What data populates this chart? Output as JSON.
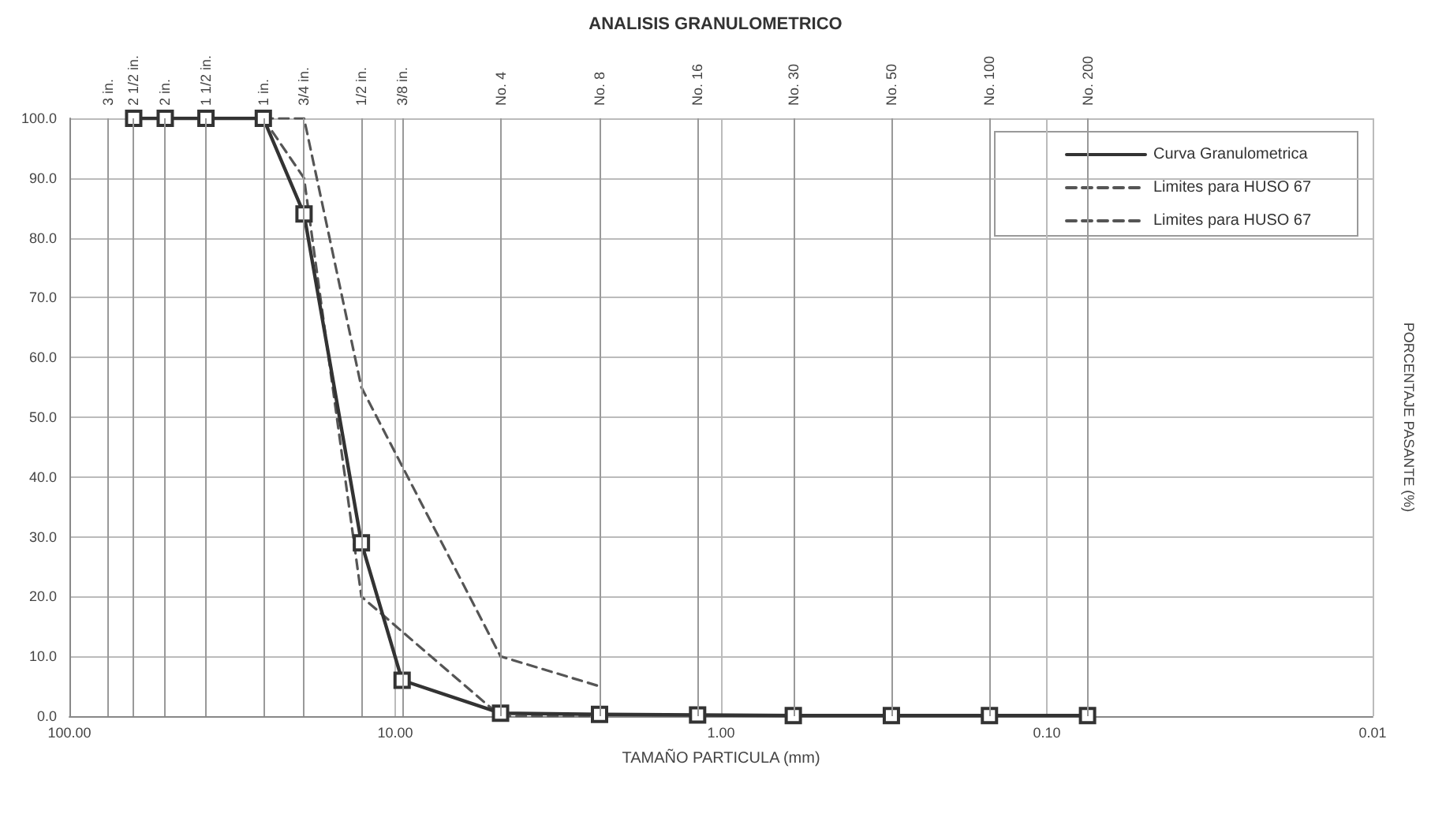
{
  "chart_data": {
    "type": "line",
    "title": "ANALISIS GRANULOMETRICO",
    "xlabel": "TAMAÑO PARTICULA (mm)",
    "ylabel": "PORCENTAJE PASANTE (%)",
    "log": "x",
    "xlim": [
      100,
      0.01
    ],
    "ylim": [
      0,
      100
    ],
    "xticks": [
      {
        "value": 100,
        "label": "100.00"
      },
      {
        "value": 10,
        "label": "10.00"
      },
      {
        "value": 1,
        "label": "1.00"
      },
      {
        "value": 0.1,
        "label": "0.10"
      },
      {
        "value": 0.01,
        "label": "0.01"
      }
    ],
    "yticks": [
      {
        "value": 0,
        "label": "0.0"
      },
      {
        "value": 10,
        "label": "10.0"
      },
      {
        "value": 20,
        "label": "20.0"
      },
      {
        "value": 30,
        "label": "30.0"
      },
      {
        "value": 40,
        "label": "40.0"
      },
      {
        "value": 50,
        "label": "50.0"
      },
      {
        "value": 60,
        "label": "60.0"
      },
      {
        "value": 70,
        "label": "70.0"
      },
      {
        "value": 80,
        "label": "80.0"
      },
      {
        "value": 90,
        "label": "90.0"
      },
      {
        "value": 100,
        "label": "100.0"
      }
    ],
    "ref_lines": [
      {
        "axis": "x",
        "value": 76.2,
        "label": "3 in.",
        "color": "#999999"
      },
      {
        "axis": "x",
        "value": 63.5,
        "label": "2 1/2 in.",
        "color": "#999999"
      },
      {
        "axis": "x",
        "value": 50.8,
        "label": "2 in.",
        "color": "#999999"
      },
      {
        "axis": "x",
        "value": 38.1,
        "label": "1 1/2 in.",
        "color": "#999999"
      },
      {
        "axis": "x",
        "value": 25.4,
        "label": "1 in.",
        "color": "#999999"
      },
      {
        "axis": "x",
        "value": 19.05,
        "label": "3/4 in.",
        "color": "#999999"
      },
      {
        "axis": "x",
        "value": 12.7,
        "label": "1/2 in.",
        "color": "#999999"
      },
      {
        "axis": "x",
        "value": 9.525,
        "label": "3/8 in.",
        "color": "#999999"
      },
      {
        "axis": "x",
        "value": 4.75,
        "label": "No. 4",
        "color": "#999999"
      },
      {
        "axis": "x",
        "value": 2.36,
        "label": "No. 8",
        "color": "#999999"
      },
      {
        "axis": "x",
        "value": 1.18,
        "label": "No. 16",
        "color": "#999999"
      },
      {
        "axis": "x",
        "value": 0.6,
        "label": "No. 30",
        "color": "#999999"
      },
      {
        "axis": "x",
        "value": 0.3,
        "label": "No. 50",
        "color": "#999999"
      },
      {
        "axis": "x",
        "value": 0.15,
        "label": "No. 100",
        "color": "#999999"
      },
      {
        "axis": "x",
        "value": 0.075,
        "label": "No. 200",
        "color": "#999999"
      }
    ],
    "grid": true,
    "legend": "top right",
    "series": [
      {
        "name": "Curva Granulometrica",
        "color": "#333333",
        "marker": "square",
        "line_style": "solid",
        "x": [
          63.5,
          50.8,
          38.1,
          25.4,
          19.05,
          12.7,
          9.525,
          4.75,
          2.36,
          1.18,
          0.6,
          0.3,
          0.15,
          0.075
        ],
        "values": [
          100,
          100,
          100,
          100,
          84,
          29,
          6,
          0.5,
          0.3,
          0.2,
          0.1,
          0.1,
          0.1,
          0.1
        ]
      },
      {
        "name": "Limites para HUSO 67",
        "color": "#555555",
        "marker": "none",
        "line_style": "dashed",
        "x": [
          25.4,
          19.05,
          12.7,
          4.75,
          2.36
        ],
        "values": [
          100,
          100,
          55,
          10,
          5
        ]
      },
      {
        "name": "Limites para HUSO 67",
        "color": "#555555",
        "marker": "none",
        "line_style": "dashed",
        "x": [
          25.4,
          19.05,
          12.7,
          4.75,
          2.36
        ],
        "values": [
          100,
          90,
          20,
          0,
          0
        ]
      }
    ]
  }
}
